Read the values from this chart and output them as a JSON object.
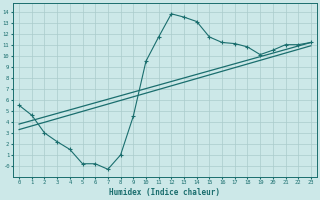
{
  "bg_color": "#cce8e8",
  "line_color": "#1a6e6e",
  "grid_color": "#aacccc",
  "xlabel": "Humidex (Indice chaleur)",
  "xlim": [
    -0.5,
    23.5
  ],
  "ylim": [
    -1.0,
    14.8
  ],
  "xticks": [
    0,
    1,
    2,
    3,
    4,
    5,
    6,
    7,
    8,
    9,
    10,
    11,
    12,
    13,
    14,
    15,
    16,
    17,
    18,
    19,
    20,
    21,
    22,
    23
  ],
  "yticks": [
    0,
    1,
    2,
    3,
    4,
    5,
    6,
    7,
    8,
    9,
    10,
    11,
    12,
    13,
    14
  ],
  "line1_x": [
    0,
    1,
    2,
    3,
    4,
    5,
    6,
    7,
    8,
    9,
    10,
    11,
    12,
    13,
    14,
    15,
    16,
    17,
    18,
    19,
    20,
    21,
    22,
    23
  ],
  "line1_y": [
    5.5,
    4.6,
    3.0,
    2.2,
    1.5,
    0.2,
    0.2,
    -0.3,
    1.0,
    4.5,
    9.5,
    11.7,
    13.8,
    13.5,
    13.1,
    11.7,
    11.2,
    11.1,
    10.8,
    10.1,
    10.5,
    11.0,
    11.0,
    11.2
  ],
  "line2_x": [
    0,
    23
  ],
  "line2_y": [
    3.8,
    11.2
  ],
  "line3_x": [
    0,
    23
  ],
  "line3_y": [
    3.3,
    10.9
  ],
  "ytick_label_0": "-0"
}
